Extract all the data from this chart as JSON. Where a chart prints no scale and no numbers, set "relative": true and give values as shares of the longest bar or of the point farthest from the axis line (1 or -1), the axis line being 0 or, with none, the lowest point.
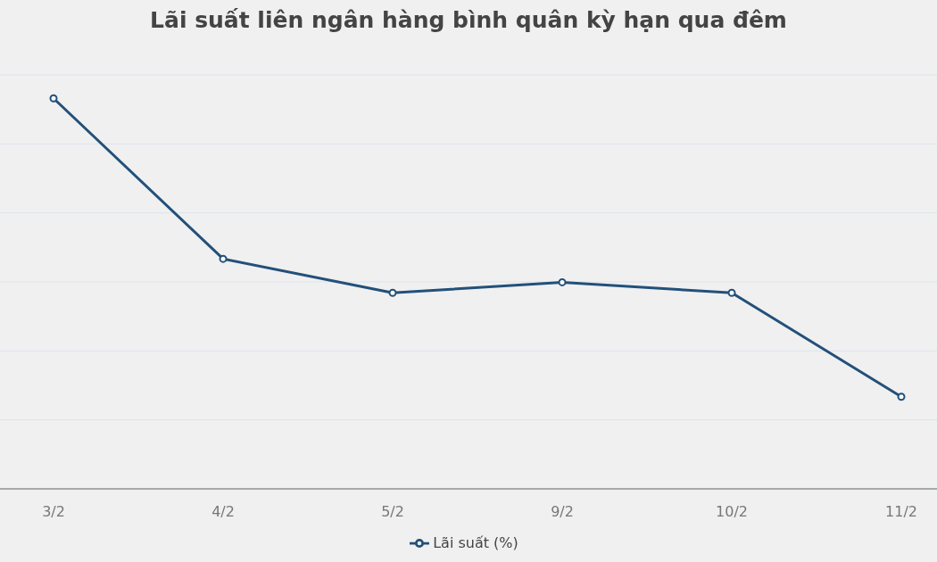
{
  "chart_data": {
    "type": "line",
    "title": "Lãi suất liên ngân hàng bình quân kỳ hạn qua đêm",
    "categories": [
      "3/2",
      "4/2",
      "5/2",
      "9/2",
      "10/2",
      "11/2"
    ],
    "series": [
      {
        "name": "Lãi suất (%)",
        "color": "#22507a",
        "values": [
          1,
          0.589,
          0.502,
          0.529,
          0.502,
          0.236
        ]
      }
    ],
    "relative": true,
    "grid": "y",
    "legend": "bottom",
    "marker": "circle",
    "line_style": "solid"
  }
}
